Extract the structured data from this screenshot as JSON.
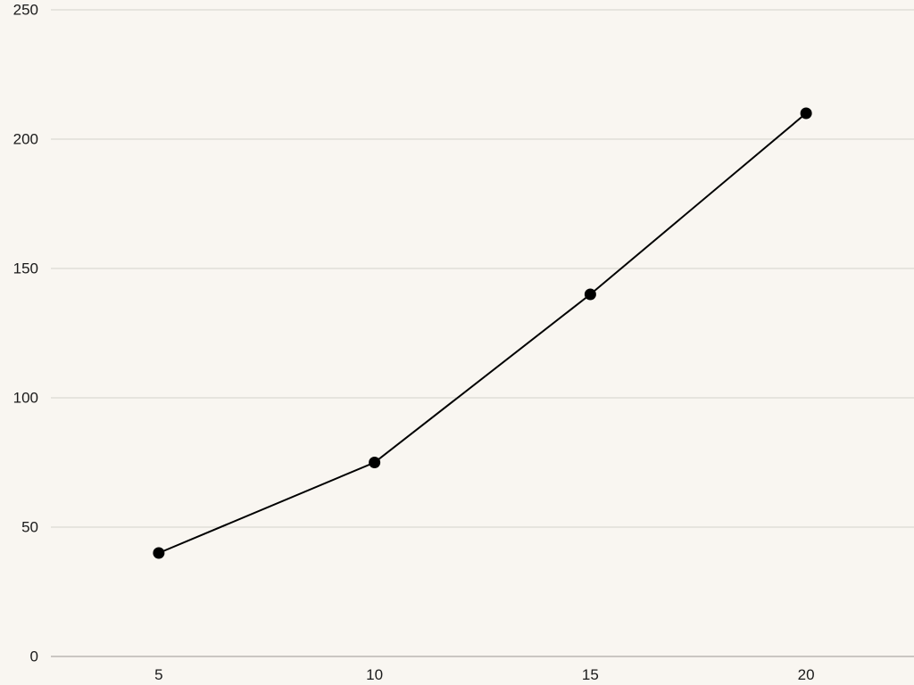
{
  "chart_data": {
    "type": "line",
    "x": [
      5,
      10,
      15,
      20
    ],
    "series": [
      {
        "values": [
          40,
          75,
          140,
          210
        ]
      }
    ],
    "x_ticks": [
      5,
      10,
      15,
      20
    ],
    "y_ticks": [
      0,
      50,
      100,
      150,
      200,
      250
    ],
    "ylim": [
      0,
      250
    ],
    "xlim": [
      2.5,
      22.5
    ],
    "grid": "horizontal",
    "legend": "none",
    "colors": {
      "background": "#f9f6f1",
      "gridline": "#d4d1cc",
      "baseline": "#9a9792",
      "series": "#000000",
      "text": "#1a1a1a"
    }
  }
}
